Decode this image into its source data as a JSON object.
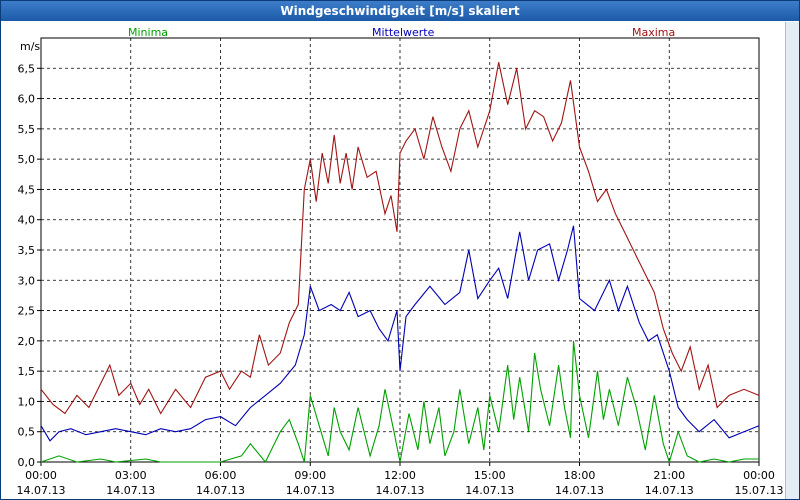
{
  "chart_data": {
    "type": "line",
    "title": "Windgeschwindigkeit [m/s] skaliert",
    "ylabel": "m/s",
    "ylim": [
      0,
      7
    ],
    "grid": true,
    "legend_placement": "top",
    "y_ticks": [
      "0,0",
      "0,5",
      "1,0",
      "1,5",
      "2,0",
      "2,5",
      "3,0",
      "3,5",
      "4,0",
      "4,5",
      "5,0",
      "5,5",
      "6,0",
      "6,5"
    ],
    "x_tick_times": [
      "00:00",
      "03:00",
      "06:00",
      "09:00",
      "12:00",
      "15:00",
      "18:00",
      "21:00",
      "00:00"
    ],
    "x_tick_dates": [
      "14.07.13",
      "14.07.13",
      "14.07.13",
      "14.07.13",
      "14.07.13",
      "14.07.13",
      "14.07.13",
      "14.07.13",
      "15.07.13"
    ],
    "x_hours_range": [
      0,
      24
    ],
    "series": [
      {
        "name": "Minima",
        "color": "#00a000",
        "points": [
          [
            0,
            0.0
          ],
          [
            0.6,
            0.1
          ],
          [
            1.2,
            0.0
          ],
          [
            2,
            0.05
          ],
          [
            2.5,
            0.0
          ],
          [
            3.5,
            0.05
          ],
          [
            4,
            0.0
          ],
          [
            5,
            0.0
          ],
          [
            6,
            0.0
          ],
          [
            6.7,
            0.1
          ],
          [
            7,
            0.3
          ],
          [
            7.5,
            0.0
          ],
          [
            8,
            0.5
          ],
          [
            8.3,
            0.7
          ],
          [
            8.6,
            0.3
          ],
          [
            8.8,
            0.0
          ],
          [
            9,
            1.1
          ],
          [
            9.3,
            0.6
          ],
          [
            9.6,
            0.1
          ],
          [
            9.8,
            0.9
          ],
          [
            10,
            0.5
          ],
          [
            10.3,
            0.2
          ],
          [
            10.6,
            0.9
          ],
          [
            10.8,
            0.5
          ],
          [
            11,
            0.1
          ],
          [
            11.3,
            0.6
          ],
          [
            11.5,
            1.2
          ],
          [
            11.8,
            0.5
          ],
          [
            12,
            0.0
          ],
          [
            12.3,
            0.8
          ],
          [
            12.6,
            0.2
          ],
          [
            12.8,
            1.0
          ],
          [
            13,
            0.3
          ],
          [
            13.3,
            0.9
          ],
          [
            13.5,
            0.1
          ],
          [
            13.8,
            0.5
          ],
          [
            14,
            1.2
          ],
          [
            14.3,
            0.3
          ],
          [
            14.6,
            0.9
          ],
          [
            14.8,
            0.2
          ],
          [
            15,
            1.1
          ],
          [
            15.3,
            0.5
          ],
          [
            15.6,
            1.6
          ],
          [
            15.8,
            0.7
          ],
          [
            16,
            1.4
          ],
          [
            16.3,
            0.5
          ],
          [
            16.5,
            1.8
          ],
          [
            16.7,
            1.2
          ],
          [
            17,
            0.6
          ],
          [
            17.3,
            1.6
          ],
          [
            17.5,
            0.9
          ],
          [
            17.7,
            0.4
          ],
          [
            17.8,
            2.0
          ],
          [
            18,
            1.1
          ],
          [
            18.3,
            0.4
          ],
          [
            18.6,
            1.5
          ],
          [
            18.8,
            0.7
          ],
          [
            19,
            1.2
          ],
          [
            19.3,
            0.6
          ],
          [
            19.6,
            1.4
          ],
          [
            19.9,
            0.9
          ],
          [
            20.2,
            0.2
          ],
          [
            20.5,
            1.1
          ],
          [
            20.8,
            0.3
          ],
          [
            21,
            0.0
          ],
          [
            21.3,
            0.5
          ],
          [
            21.6,
            0.1
          ],
          [
            22,
            0.0
          ],
          [
            22.5,
            0.05
          ],
          [
            23,
            0.0
          ],
          [
            23.5,
            0.05
          ],
          [
            24,
            0.05
          ]
        ]
      },
      {
        "name": "Mittelwerte",
        "color": "#0000b4",
        "points": [
          [
            0,
            0.6
          ],
          [
            0.3,
            0.35
          ],
          [
            0.6,
            0.5
          ],
          [
            1,
            0.55
          ],
          [
            1.5,
            0.45
          ],
          [
            2,
            0.5
          ],
          [
            2.5,
            0.55
          ],
          [
            3,
            0.5
          ],
          [
            3.5,
            0.45
          ],
          [
            4,
            0.55
          ],
          [
            4.5,
            0.5
          ],
          [
            5,
            0.55
          ],
          [
            5.5,
            0.7
          ],
          [
            6,
            0.75
          ],
          [
            6.5,
            0.6
          ],
          [
            7,
            0.9
          ],
          [
            7.5,
            1.1
          ],
          [
            8,
            1.3
          ],
          [
            8.5,
            1.6
          ],
          [
            8.8,
            2.1
          ],
          [
            9,
            2.9
          ],
          [
            9.3,
            2.5
          ],
          [
            9.7,
            2.6
          ],
          [
            10,
            2.5
          ],
          [
            10.3,
            2.8
          ],
          [
            10.6,
            2.4
          ],
          [
            11,
            2.5
          ],
          [
            11.3,
            2.2
          ],
          [
            11.6,
            2.0
          ],
          [
            11.9,
            2.5
          ],
          [
            12,
            1.5
          ],
          [
            12.2,
            2.4
          ],
          [
            12.5,
            2.6
          ],
          [
            13,
            2.9
          ],
          [
            13.5,
            2.6
          ],
          [
            14,
            2.8
          ],
          [
            14.3,
            3.5
          ],
          [
            14.6,
            2.7
          ],
          [
            15,
            3.0
          ],
          [
            15.3,
            3.2
          ],
          [
            15.6,
            2.7
          ],
          [
            16,
            3.8
          ],
          [
            16.3,
            3.0
          ],
          [
            16.6,
            3.5
          ],
          [
            17,
            3.6
          ],
          [
            17.3,
            3.0
          ],
          [
            17.6,
            3.5
          ],
          [
            17.8,
            3.9
          ],
          [
            18,
            2.7
          ],
          [
            18.5,
            2.5
          ],
          [
            19,
            3.0
          ],
          [
            19.3,
            2.5
          ],
          [
            19.6,
            2.9
          ],
          [
            20,
            2.3
          ],
          [
            20.3,
            2.0
          ],
          [
            20.6,
            2.1
          ],
          [
            21,
            1.5
          ],
          [
            21.3,
            0.9
          ],
          [
            21.6,
            0.7
          ],
          [
            22,
            0.5
          ],
          [
            22.5,
            0.7
          ],
          [
            23,
            0.4
          ],
          [
            23.5,
            0.5
          ],
          [
            24,
            0.6
          ]
        ]
      },
      {
        "name": "Maxima",
        "color": "#a01414",
        "points": [
          [
            0,
            1.2
          ],
          [
            0.4,
            0.95
          ],
          [
            0.8,
            0.8
          ],
          [
            1.2,
            1.1
          ],
          [
            1.6,
            0.9
          ],
          [
            2,
            1.3
          ],
          [
            2.3,
            1.6
          ],
          [
            2.6,
            1.1
          ],
          [
            3,
            1.3
          ],
          [
            3.3,
            0.95
          ],
          [
            3.6,
            1.2
          ],
          [
            4,
            0.8
          ],
          [
            4.5,
            1.2
          ],
          [
            5,
            0.9
          ],
          [
            5.5,
            1.4
          ],
          [
            6,
            1.5
          ],
          [
            6.3,
            1.2
          ],
          [
            6.7,
            1.5
          ],
          [
            7,
            1.4
          ],
          [
            7.3,
            2.1
          ],
          [
            7.6,
            1.6
          ],
          [
            8,
            1.8
          ],
          [
            8.3,
            2.3
          ],
          [
            8.6,
            2.6
          ],
          [
            8.8,
            4.5
          ],
          [
            9,
            5.0
          ],
          [
            9.2,
            4.3
          ],
          [
            9.4,
            5.1
          ],
          [
            9.6,
            4.6
          ],
          [
            9.8,
            5.4
          ],
          [
            10,
            4.6
          ],
          [
            10.2,
            5.1
          ],
          [
            10.4,
            4.5
          ],
          [
            10.6,
            5.2
          ],
          [
            10.9,
            4.7
          ],
          [
            11.2,
            4.8
          ],
          [
            11.5,
            4.1
          ],
          [
            11.7,
            4.4
          ],
          [
            11.9,
            3.8
          ],
          [
            12,
            5.1
          ],
          [
            12.2,
            5.3
          ],
          [
            12.5,
            5.5
          ],
          [
            12.8,
            5.0
          ],
          [
            13.1,
            5.7
          ],
          [
            13.4,
            5.2
          ],
          [
            13.7,
            4.8
          ],
          [
            14,
            5.5
          ],
          [
            14.3,
            5.8
          ],
          [
            14.6,
            5.2
          ],
          [
            15,
            5.8
          ],
          [
            15.3,
            6.6
          ],
          [
            15.6,
            5.9
          ],
          [
            15.9,
            6.5
          ],
          [
            16.2,
            5.5
          ],
          [
            16.5,
            5.8
          ],
          [
            16.8,
            5.7
          ],
          [
            17.1,
            5.3
          ],
          [
            17.4,
            5.6
          ],
          [
            17.7,
            6.3
          ],
          [
            18,
            5.2
          ],
          [
            18.3,
            4.8
          ],
          [
            18.6,
            4.3
          ],
          [
            18.9,
            4.5
          ],
          [
            19.2,
            4.1
          ],
          [
            19.5,
            3.8
          ],
          [
            19.9,
            3.4
          ],
          [
            20.2,
            3.1
          ],
          [
            20.5,
            2.8
          ],
          [
            20.8,
            2.2
          ],
          [
            21.1,
            1.8
          ],
          [
            21.4,
            1.5
          ],
          [
            21.7,
            1.9
          ],
          [
            22,
            1.2
          ],
          [
            22.3,
            1.6
          ],
          [
            22.6,
            0.9
          ],
          [
            23,
            1.1
          ],
          [
            23.5,
            1.2
          ],
          [
            24,
            1.1
          ]
        ]
      }
    ]
  }
}
